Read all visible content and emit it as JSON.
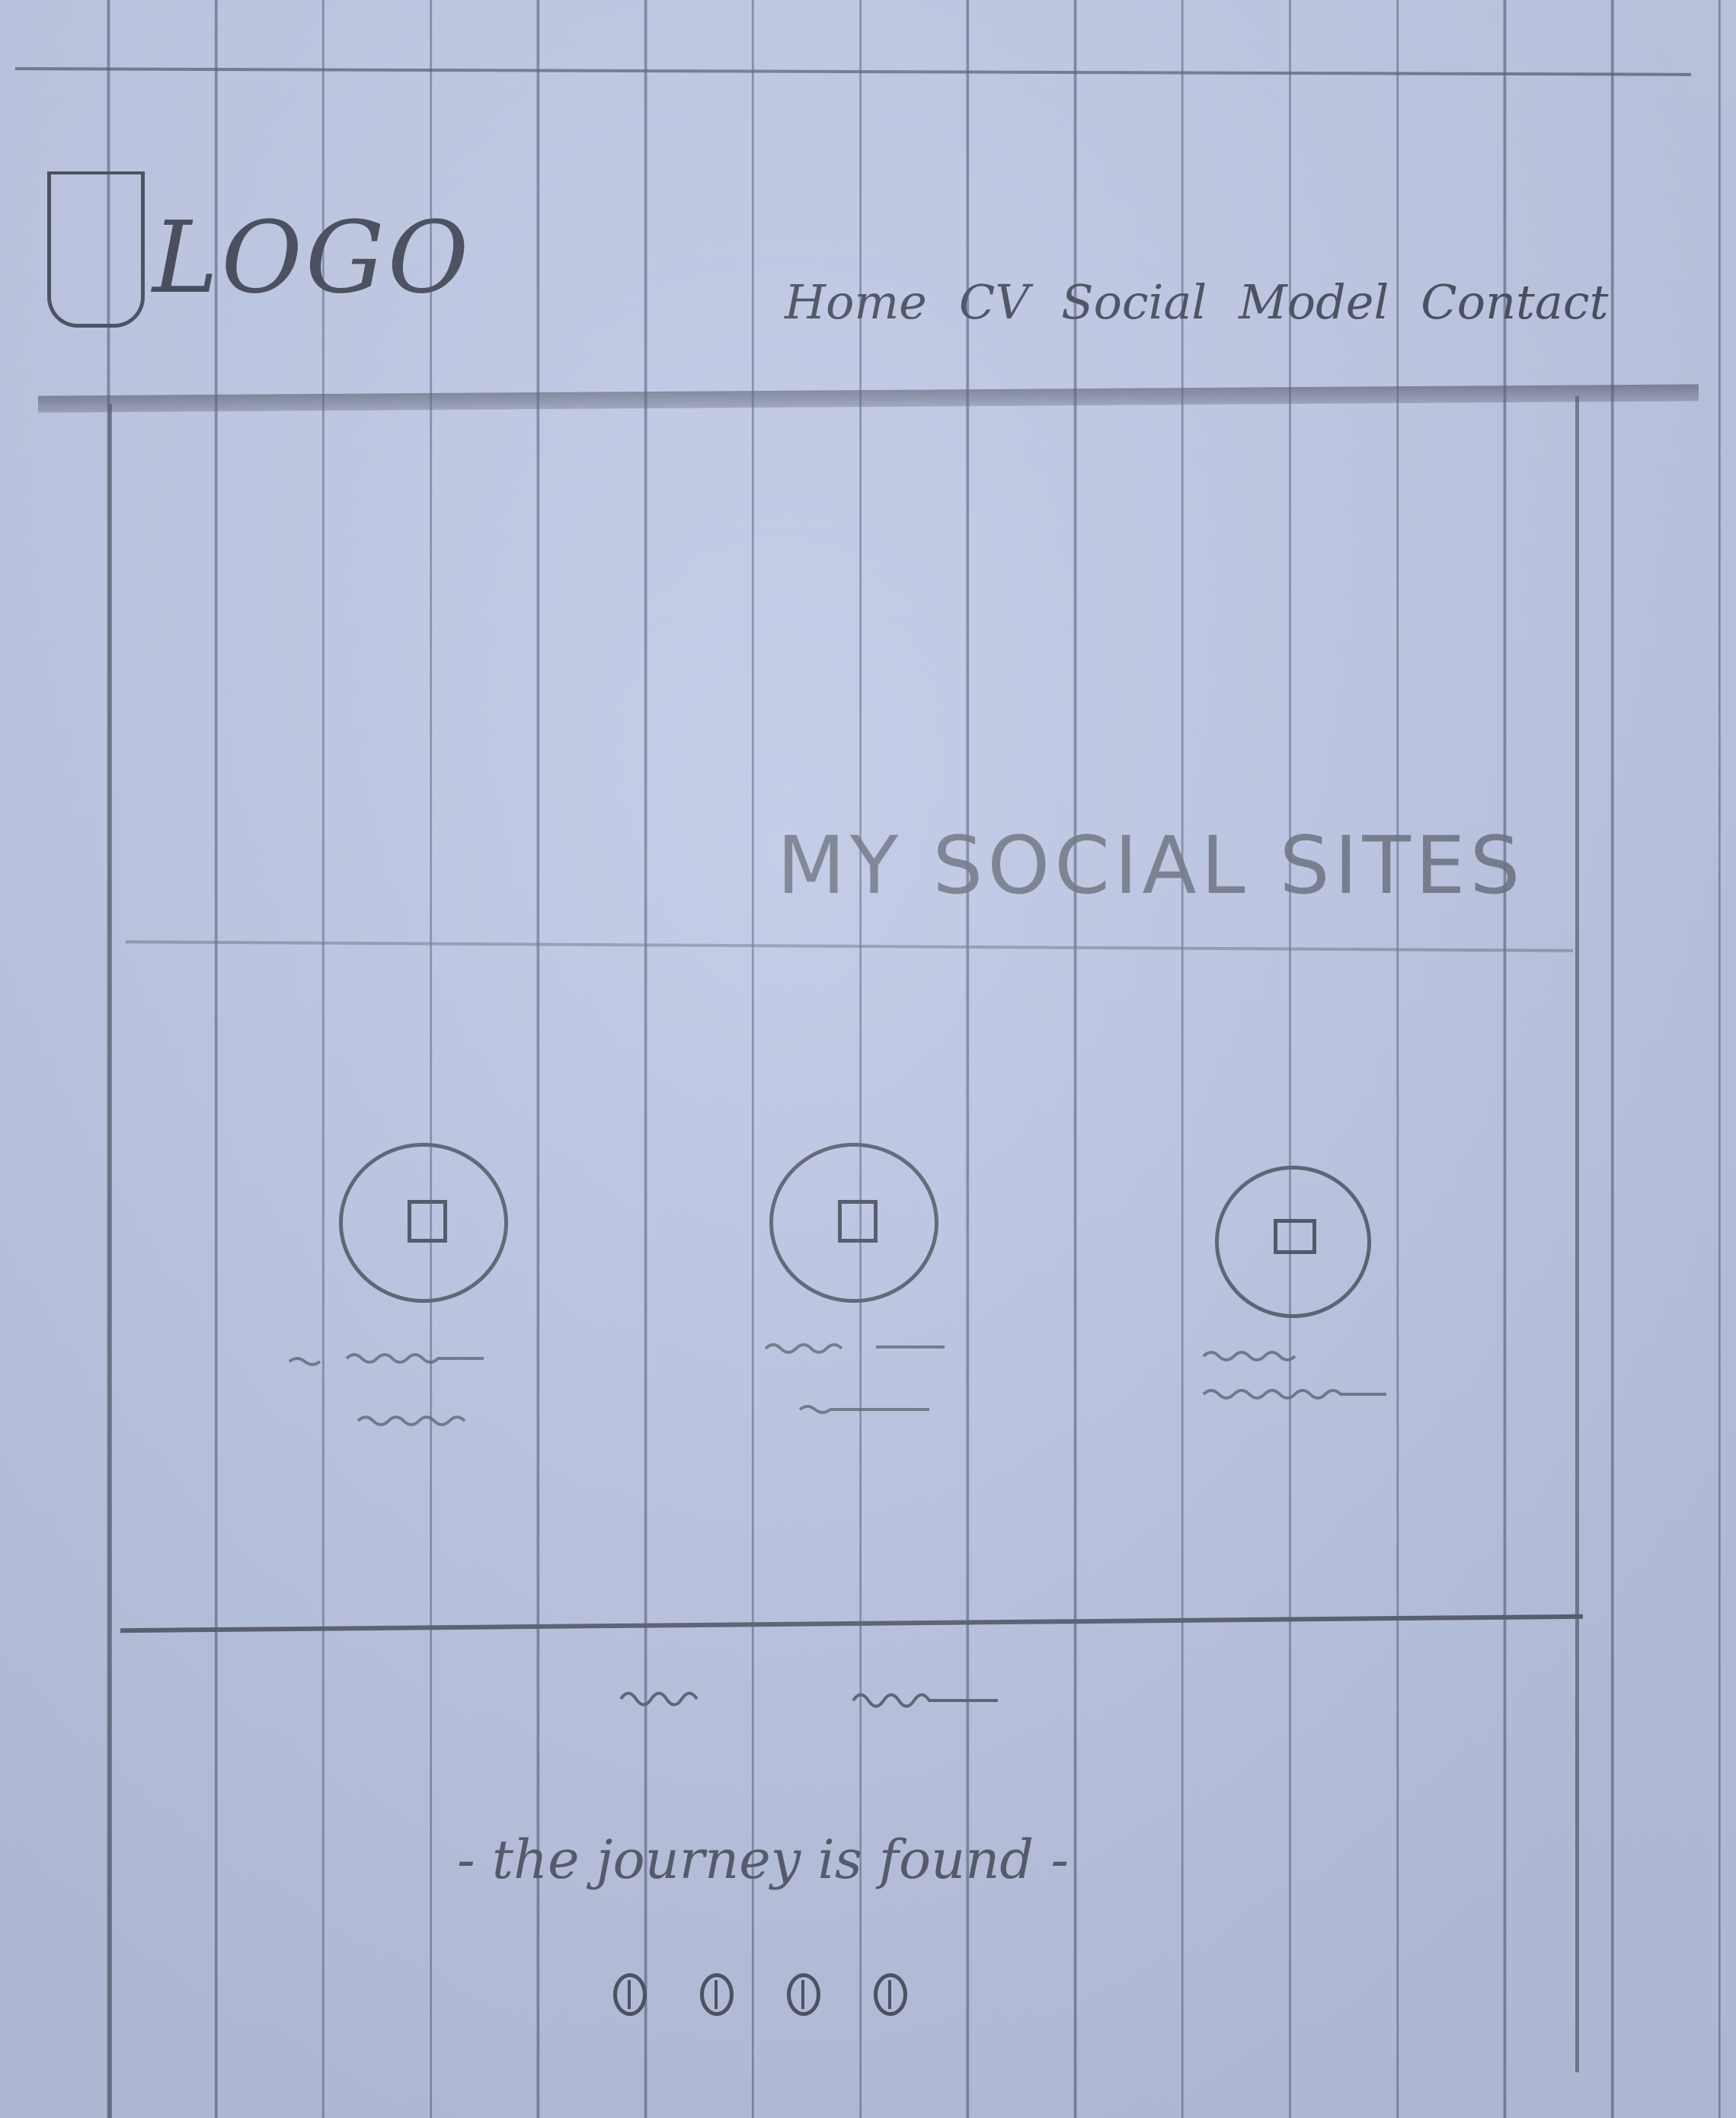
{
  "header": {
    "logo_text": "LOGO",
    "nav": [
      "Home",
      "CV",
      "Social",
      "Model",
      "Contact"
    ]
  },
  "main": {
    "section_title": "MY SOCIAL SITES",
    "cards": [
      {
        "icon": "image-placeholder-icon"
      },
      {
        "icon": "image-placeholder-icon"
      },
      {
        "icon": "image-placeholder-icon"
      }
    ]
  },
  "footer": {
    "tagline": "- the journey is found -",
    "social_icons": [
      "social-circle-icon",
      "social-circle-icon",
      "social-circle-icon",
      "social-circle-icon"
    ]
  },
  "colors": {
    "paper": "#c0cae6",
    "pencil": "#4a4f5e"
  }
}
